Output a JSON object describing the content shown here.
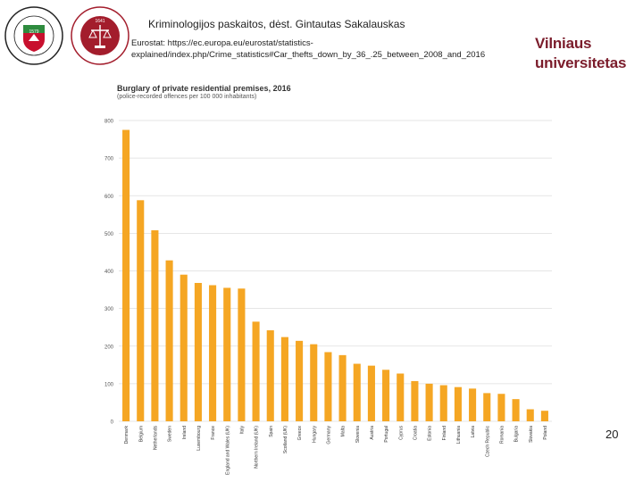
{
  "slide": {
    "header": "Kriminologijos paskaitos, dėst. Gintautas Sakalauskas",
    "source": "Eurostat: https://ec.europa.eu/eurostat/statistics-explained/index.php/Crime_statistics#Car_thefts_down_by_36_.25_between_2008_and_2016",
    "university_line1": "Vilniaus",
    "university_line2": "universitetas",
    "page_number": "20"
  },
  "logos": {
    "logo1": {
      "text_top": "VILNIAUS UNIVERSITETAS",
      "text_bottom": "UNIVERSITAS VILNENSIS",
      "year": "1579"
    },
    "logo2": {
      "text_top": "TEISĖS FAKULTETAS",
      "text_bottom": "VILNIAUS UNIVERSITETAS",
      "year": "1641"
    }
  },
  "colors": {
    "bar": "#F5A623",
    "grid": "#dddddd",
    "vu_red": "#7b1c2b",
    "logo1_green": "#2e8b3e",
    "logo1_red": "#c8102e",
    "logo2_red": "#a31d2c"
  },
  "chart_data": {
    "type": "bar",
    "title": "Burglary of private residential premises, 2016",
    "subtitle": "(police-recorded offences per 100 000 inhabitants)",
    "categories": [
      "Denmark",
      "Belgium",
      "Netherlands",
      "Sweden",
      "Ireland",
      "Luxembourg",
      "France",
      "England and Wales (UK)",
      "Italy",
      "Northern Ireland (UK)",
      "Spain",
      "Scotland (UK)",
      "Greece",
      "Hungary",
      "Germany",
      "Malta",
      "Slovenia",
      "Austria",
      "Portugal",
      "Cyprus",
      "Croatia",
      "Estonia",
      "Finland",
      "Lithuania",
      "Latvia",
      "Czech Republic",
      "Romania",
      "Bulgaria",
      "Slovakia",
      "Poland"
    ],
    "values": [
      775,
      588,
      508,
      428,
      390,
      368,
      362,
      355,
      353,
      265,
      242,
      224,
      214,
      205,
      184,
      176,
      153,
      148,
      137,
      127,
      107,
      100,
      96,
      91,
      87,
      75,
      73,
      59,
      32,
      28
    ],
    "yticks": [
      0,
      100,
      200,
      300,
      400,
      500,
      600,
      700,
      800
    ],
    "ylim": [
      0,
      800
    ],
    "xlabel": "",
    "ylabel": ""
  }
}
